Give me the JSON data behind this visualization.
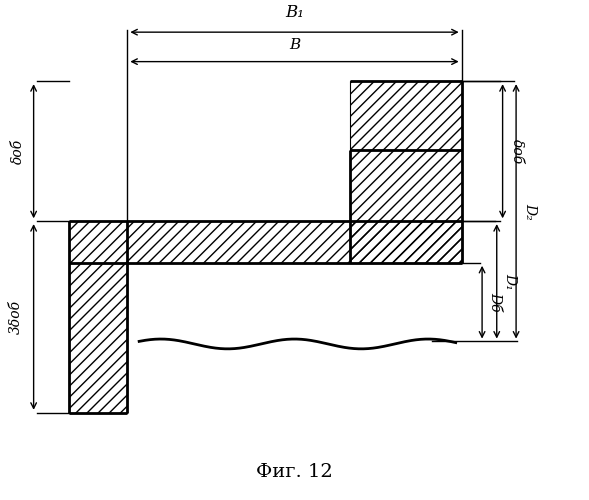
{
  "fig_width": 5.89,
  "fig_height": 5.0,
  "dpi": 100,
  "bg_color": "#ffffff",
  "lc": "#000000",
  "lw_main": 2.0,
  "lw_dim": 1.0,
  "title": "Фиг. 12",
  "title_fontsize": 14,
  "xl": 0.115,
  "xwl": 0.115,
  "xwr": 0.215,
  "xfl": 0.595,
  "xr": 0.785,
  "yrt": 0.85,
  "yft": 0.71,
  "ybt": 0.565,
  "ybb": 0.48,
  "ywb": 0.175,
  "ywy": 0.315,
  "labels": {
    "B1": "B₁",
    "B": "B",
    "dob_l": "δоб",
    "dob_r": "δоб",
    "3dob": "3δоб",
    "Db": "Dб",
    "D1": "D₁",
    "D2": "D₂"
  }
}
